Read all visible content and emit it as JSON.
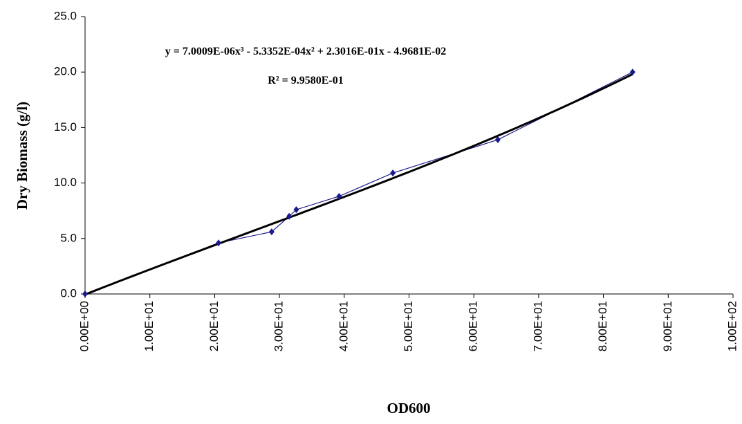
{
  "chart_data": {
    "type": "scatter",
    "x_label": "OD600",
    "y_label": "Dry Biomass (g/l)",
    "x": [
      0,
      20.6,
      28.8,
      31.5,
      32.6,
      39.2,
      47.5,
      63.7,
      84.5
    ],
    "series": [
      {
        "color": "#1a1a8c",
        "values": [
          0,
          4.6,
          5.6,
          7.0,
          7.6,
          8.8,
          10.9,
          13.9,
          20.0
        ]
      }
    ],
    "trendline": {
      "equation": "y = 7.0009E-06x³ - 5.3352E-04x² + 2.3016E-01x - 4.9681E-02",
      "r2": "R² = 9.9580E-01",
      "coefficients": [
        7.0009e-06,
        -0.00053352,
        0.23016,
        -0.049681
      ],
      "color": "#000000"
    },
    "xlim": [
      0,
      100
    ],
    "xticks": [
      {
        "value": 0,
        "label": "0.00E+00"
      },
      {
        "value": 10,
        "label": "1.00E+01"
      },
      {
        "value": 20,
        "label": "2.00E+01"
      },
      {
        "value": 30,
        "label": "3.00E+01"
      },
      {
        "value": 40,
        "label": "4.00E+01"
      },
      {
        "value": 50,
        "label": "5.00E+01"
      },
      {
        "value": 60,
        "label": "6.00E+01"
      },
      {
        "value": 70,
        "label": "7.00E+01"
      },
      {
        "value": 80,
        "label": "8.00E+01"
      },
      {
        "value": 90,
        "label": "9.00E+01"
      },
      {
        "value": 100,
        "label": "1.00E+02"
      }
    ],
    "ylim": [
      0,
      25
    ],
    "yticks": [
      {
        "value": 0,
        "label": "0.0"
      },
      {
        "value": 5,
        "label": "5.0"
      },
      {
        "value": 10,
        "label": "10.0"
      },
      {
        "value": 15,
        "label": "15.0"
      },
      {
        "value": 20,
        "label": "20.0"
      },
      {
        "value": 25,
        "label": "25.0"
      }
    ]
  }
}
